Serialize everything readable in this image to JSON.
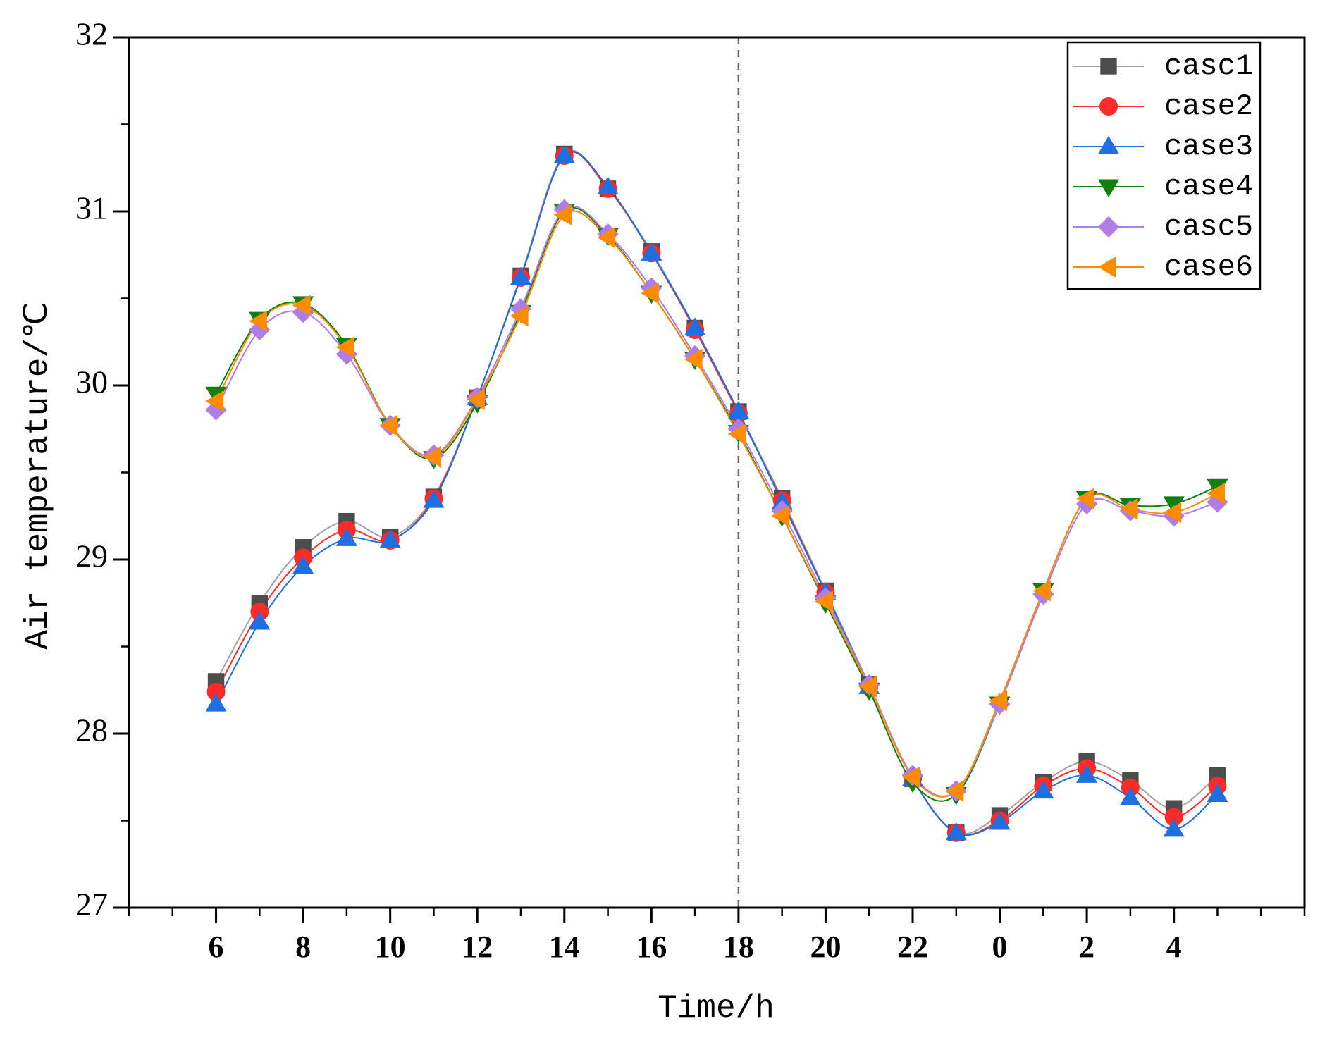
{
  "chart_data": {
    "type": "line",
    "xlabel": "Time/h",
    "ylabel": "Air temperature/℃",
    "x": [
      6,
      7,
      8,
      9,
      10,
      11,
      12,
      13,
      14,
      15,
      16,
      17,
      18,
      19,
      20,
      21,
      22,
      23,
      24,
      25,
      26,
      27,
      28,
      29
    ],
    "xlim": [
      4,
      31
    ],
    "xticks": [
      6,
      8,
      10,
      12,
      14,
      16,
      18,
      20,
      22,
      {
        "value": 24,
        "label": "0"
      },
      {
        "value": 26,
        "label": "2"
      },
      {
        "value": 28,
        "label": "4"
      }
    ],
    "ylim": [
      27,
      32
    ],
    "yticks": [
      27,
      28,
      29,
      30,
      31,
      32
    ],
    "vline": 18,
    "legend": "upper right",
    "series": [
      {
        "name": "casc1",
        "color": "#4d4d4d",
        "line_color": "#a0a0a0",
        "marker": "square",
        "values": [
          28.3,
          28.75,
          29.07,
          29.22,
          29.13,
          29.36,
          29.93,
          30.63,
          31.33,
          31.13,
          30.77,
          30.33,
          29.85,
          29.35,
          28.82,
          28.28,
          27.74,
          27.43,
          27.53,
          27.72,
          27.84,
          27.73,
          27.57,
          27.76
        ]
      },
      {
        "name": "case2",
        "color": "#ff2a2a",
        "line_color": "#ff2a2a",
        "marker": "circle",
        "values": [
          28.24,
          28.7,
          29.01,
          29.17,
          29.11,
          29.35,
          29.93,
          30.62,
          31.32,
          31.13,
          30.76,
          30.32,
          29.84,
          29.34,
          28.81,
          28.27,
          27.74,
          27.43,
          27.5,
          27.7,
          27.8,
          27.69,
          27.52,
          27.7
        ]
      },
      {
        "name": "case3",
        "color": "#1f6fe0",
        "line_color": "#1f6fe0",
        "marker": "triangle-up",
        "values": [
          28.17,
          28.64,
          28.96,
          29.12,
          29.11,
          29.34,
          29.93,
          30.62,
          31.32,
          31.14,
          30.76,
          30.33,
          29.85,
          29.33,
          28.81,
          28.27,
          27.74,
          27.43,
          27.49,
          27.67,
          27.76,
          27.63,
          27.45,
          27.65
        ]
      },
      {
        "name": "case4",
        "color": "#118011",
        "line_color": "#118011",
        "marker": "triangle-down",
        "values": [
          29.95,
          30.38,
          30.47,
          30.23,
          29.77,
          29.58,
          29.9,
          30.42,
          31.0,
          30.86,
          30.53,
          30.15,
          29.73,
          29.25,
          28.75,
          28.25,
          27.72,
          27.65,
          28.17,
          28.82,
          29.35,
          29.31,
          29.32,
          29.42
        ]
      },
      {
        "name": "casc5",
        "color": "#b07ce8",
        "line_color": "#b07ce8",
        "marker": "diamond",
        "values": [
          29.86,
          30.32,
          30.42,
          30.18,
          29.77,
          29.6,
          29.93,
          30.44,
          31.01,
          30.87,
          30.56,
          30.17,
          29.75,
          29.28,
          28.78,
          28.28,
          27.76,
          27.67,
          28.17,
          28.8,
          29.32,
          29.28,
          29.25,
          29.33
        ]
      },
      {
        "name": "case6",
        "color": "#ff8c00",
        "line_color": "#ff8c00",
        "marker": "triangle-left",
        "values": [
          29.91,
          30.37,
          30.46,
          30.22,
          29.77,
          29.59,
          29.92,
          30.4,
          30.98,
          30.85,
          30.53,
          30.15,
          29.72,
          29.25,
          28.76,
          28.27,
          27.75,
          27.67,
          28.19,
          28.82,
          29.35,
          29.29,
          29.27,
          29.38
        ]
      }
    ]
  }
}
